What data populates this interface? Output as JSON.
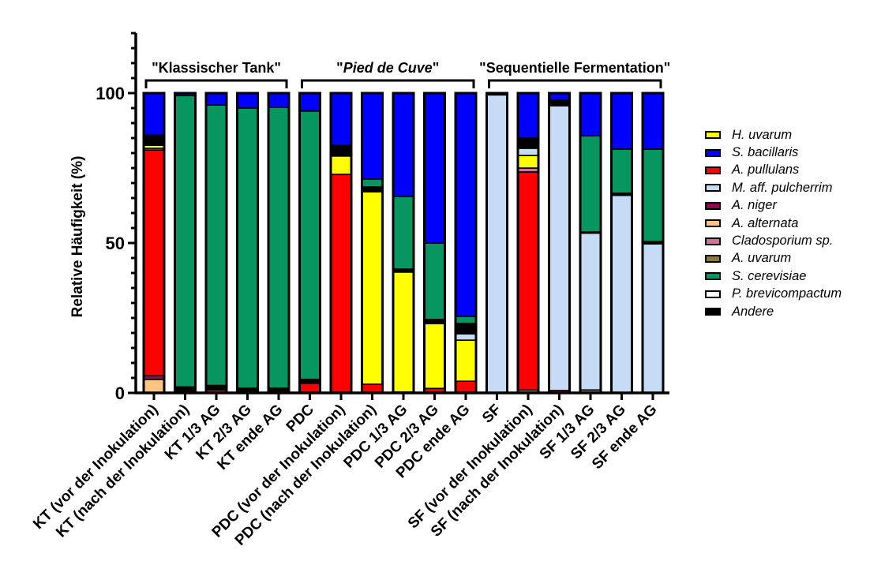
{
  "chart_data": {
    "type": "bar",
    "stacked": true,
    "title": "",
    "xlabel": "",
    "ylabel": "Relative Häufigkeit (%)",
    "ylim": [
      0,
      120
    ],
    "yticks": [
      0,
      50,
      100
    ],
    "yticks_labels": [
      "0",
      "50",
      "100"
    ],
    "y_minor_step": 5,
    "grid": false,
    "legend_position": "right",
    "groups": [
      {
        "label_prefix": "\"",
        "label_main": "Klassischer Tank",
        "label_suffix": "\"",
        "italic": false,
        "start": 0,
        "end": 4
      },
      {
        "label_prefix": "\"",
        "label_main": "Pied de Cuve",
        "label_suffix": "\"",
        "italic": true,
        "start": 5,
        "end": 10
      },
      {
        "label_prefix": "\"",
        "label_main": "Sequentielle Fermentation",
        "label_suffix": "\"",
        "italic": false,
        "start": 11,
        "end": 16
      }
    ],
    "categories": [
      "KT (vor der Inokulation)",
      "KT (nach der Inokulation)",
      "KT 1/3 AG",
      "KT 2/3 AG",
      "KT ende AG",
      "PDC",
      "PDC (vor der Inokulation)",
      "PDC (nach der Inokulation)",
      "PDC 1/3 AG",
      "PDC 2/3 AG",
      "PDC ende AG",
      "SF",
      "SF (vor der Inokulation)",
      "SF (nach der Inokulation)",
      "SF 1/3 AG",
      "SF 2/3 AG",
      "SF ende AG"
    ],
    "stack_order_bottom_to_top": [
      "A. alternata",
      "A. uvarum",
      "A. niger",
      "A. pullulans",
      "Cladosporium sp.",
      "H. uvarum",
      "M. aff. pulcherrim",
      "P. brevicompactum",
      "Andere",
      "S. cerevisiae",
      "S. bacillaris"
    ],
    "series": [
      {
        "name": "H. uvarum",
        "color": "#FFFF00",
        "italic": true,
        "values": [
          1.0,
          0,
          0,
          0,
          0,
          0,
          6.1,
          64.2,
          40.0,
          21.6,
          13.7,
          0,
          4.2,
          0,
          0,
          0,
          0
        ]
      },
      {
        "name": "S. bacillaris",
        "color": "#0000FF",
        "italic": true,
        "values": [
          14.0,
          0.8,
          4.0,
          5.0,
          4.7,
          6.0,
          17.4,
          28.7,
          34.5,
          50.0,
          74.5,
          0,
          15.0,
          2.4,
          14.2,
          18.7,
          18.7
        ]
      },
      {
        "name": "A. pullulans",
        "color": "#FF0000",
        "italic": true,
        "values": [
          75.2,
          0,
          1.0,
          0,
          0.3,
          3.2,
          72.9,
          2.9,
          0.3,
          1.5,
          3.9,
          0,
          72.7,
          0.8,
          0,
          0,
          0
        ]
      },
      {
        "name": "M. aff. pulcherrim",
        "color": "#C6DBF5",
        "italic": true,
        "values": [
          0,
          0,
          0,
          0,
          0,
          0,
          0,
          0,
          0,
          0,
          2.1,
          99.4,
          2.4,
          95.0,
          52.3,
          65.9,
          49.7
        ]
      },
      {
        "name": "A. niger",
        "color": "#8B0A50",
        "italic": true,
        "values": [
          1.3,
          0,
          0,
          0,
          0,
          0,
          0,
          0,
          0,
          0,
          0,
          0,
          0,
          0,
          0,
          0,
          0
        ]
      },
      {
        "name": "A. alternata",
        "color": "#FFC480",
        "italic": true,
        "values": [
          4.5,
          0,
          0,
          0,
          0,
          0,
          0,
          0,
          0,
          0,
          0,
          0,
          0,
          0,
          0,
          0,
          0
        ]
      },
      {
        "name": "Cladosporium sp.",
        "color": "#C87896",
        "italic": true,
        "values": [
          0.6,
          0,
          0,
          0,
          0,
          0,
          0,
          0,
          0,
          0,
          0,
          0,
          1.3,
          0,
          0,
          0,
          0
        ]
      },
      {
        "name": "A. uvarum",
        "color": "#8B7A3A",
        "italic": true,
        "values": [
          0,
          0,
          0,
          0,
          0,
          0,
          0,
          0,
          0,
          0,
          0,
          0,
          1.0,
          0,
          1.0,
          0,
          0
        ]
      },
      {
        "name": "S. cerevisiae",
        "color": "#07965F",
        "italic": true,
        "values": [
          0,
          97.2,
          93.5,
          93.4,
          93.7,
          89.5,
          0,
          2.6,
          24.2,
          25.5,
          2.3,
          0,
          0,
          0,
          32.1,
          14.7,
          30.8
        ]
      },
      {
        "name": "P. brevicompactum",
        "color": "#FFFFFF",
        "italic": true,
        "values": [
          0,
          0,
          0,
          0,
          0,
          0,
          0,
          0,
          0,
          0,
          0,
          0,
          0,
          0,
          0,
          0,
          0
        ]
      },
      {
        "name": "Andere",
        "color": "#000000",
        "italic": true,
        "values": [
          3.4,
          2.0,
          1.5,
          1.6,
          1.3,
          1.3,
          3.6,
          1.6,
          1.0,
          1.4,
          3.5,
          0.6,
          3.4,
          1.8,
          0.4,
          0.7,
          0.8
        ]
      }
    ]
  }
}
